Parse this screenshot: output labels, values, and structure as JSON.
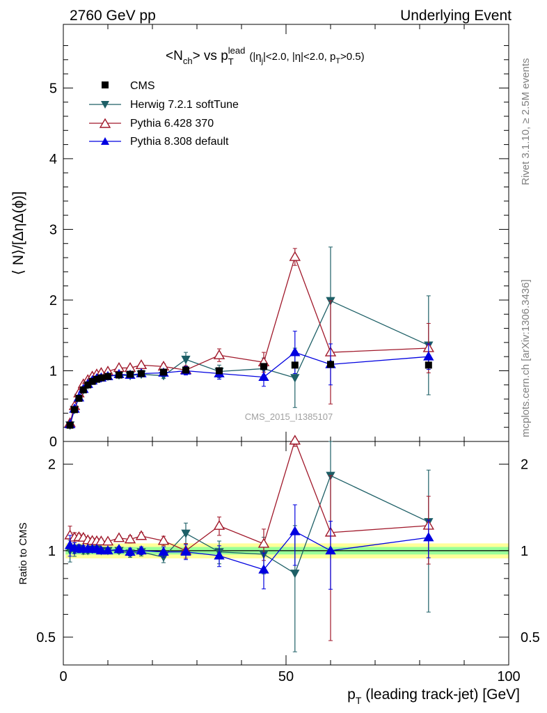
{
  "header": {
    "left": "2760 GeV pp",
    "right": "Underlying Event"
  },
  "side_labels": {
    "rivet": "Rivet 3.1.10, ≥ 2.5M events",
    "mcplots": "mcplots.cern.ch [arXiv:1306.3436]"
  },
  "chart_data": {
    "type": "line",
    "title": {
      "main": "<N",
      "main_sub": "ch",
      "mid": "> vs p",
      "p_sub": "T",
      "p_sup": "lead",
      "cuts": "(|η",
      "cuts_sub": "j",
      "cuts2": "|<2.0, |η|<2.0, p",
      "cuts_sub2": "T",
      "cuts3": ">0.5)"
    },
    "ylabel": "⟨ N⟩/[ΔηΔ(ϕ)]",
    "ratio_ylabel": "Ratio to CMS",
    "xlabel_main": "p",
    "xlabel_sub": "T",
    "xlabel_rest": " (leading track-jet) [GeV]",
    "watermark": "CMS_2015_I1385107",
    "xlim": [
      0,
      100
    ],
    "ylim": [
      0,
      5.9
    ],
    "ratio_ylim": [
      0.4,
      2.4
    ],
    "x_ticks": [
      "0",
      "50",
      "100"
    ],
    "x_tick_values": [
      0,
      50,
      100
    ],
    "y_ticks": [
      "0",
      "1",
      "2",
      "3",
      "4",
      "5"
    ],
    "y_tick_values": [
      0,
      1,
      2,
      3,
      4,
      5
    ],
    "ratio_ticks": [
      "0.5",
      "1",
      "2"
    ],
    "ratio_tick_values": [
      0.5,
      1,
      2
    ],
    "x": [
      1.5,
      2.5,
      3.5,
      4.5,
      5.5,
      6.5,
      7.5,
      8.5,
      10,
      12.5,
      15,
      17.5,
      22.5,
      27.5,
      35,
      45,
      52,
      60,
      82
    ],
    "cms": {
      "name": "CMS",
      "color": "#000000",
      "values": [
        0.23,
        0.45,
        0.61,
        0.73,
        0.8,
        0.85,
        0.88,
        0.9,
        0.92,
        0.94,
        0.95,
        0.96,
        0.98,
        1.01,
        1.0,
        1.06,
        1.08,
        1.09,
        1.08
      ],
      "band_inner": [
        0.97,
        1.03
      ],
      "band_outer": [
        0.94,
        1.06
      ]
    },
    "series": [
      {
        "name": "Herwig 7.2.1 softTune",
        "color": "#1d5f66",
        "marker": "triangle-down",
        "values": [
          0.23,
          0.45,
          0.62,
          0.73,
          0.8,
          0.86,
          0.89,
          0.9,
          0.92,
          0.94,
          0.93,
          0.95,
          0.93,
          1.16,
          0.99,
          1.03,
          0.9,
          1.99,
          1.36
        ],
        "errors": [
          0.02,
          0.02,
          0.02,
          0.02,
          0.02,
          0.02,
          0.02,
          0.02,
          0.02,
          0.02,
          0.03,
          0.03,
          0.04,
          0.1,
          0.09,
          0.15,
          0.42,
          0.76,
          0.7
        ]
      },
      {
        "name": "Pythia 6.428 370",
        "color": "#a0182a",
        "marker": "triangle-up-open",
        "values": [
          0.26,
          0.5,
          0.68,
          0.81,
          0.87,
          0.92,
          0.95,
          0.97,
          0.99,
          1.04,
          1.04,
          1.08,
          1.06,
          1.01,
          1.22,
          1.12,
          2.61,
          1.26,
          1.32
        ],
        "errors": [
          0.02,
          0.02,
          0.02,
          0.02,
          0.02,
          0.02,
          0.02,
          0.02,
          0.02,
          0.02,
          0.03,
          0.03,
          0.04,
          0.06,
          0.09,
          0.14,
          0.12,
          0.73,
          0.35
        ]
      },
      {
        "name": "Pythia 8.308 default",
        "color": "#0000e0",
        "marker": "triangle-up",
        "values": [
          0.24,
          0.46,
          0.62,
          0.74,
          0.81,
          0.86,
          0.89,
          0.9,
          0.92,
          0.95,
          0.94,
          0.96,
          0.97,
          1.0,
          0.96,
          0.91,
          1.26,
          1.09,
          1.2
        ],
        "errors": [
          0.02,
          0.02,
          0.02,
          0.02,
          0.02,
          0.02,
          0.02,
          0.02,
          0.02,
          0.02,
          0.03,
          0.03,
          0.04,
          0.06,
          0.08,
          0.13,
          0.3,
          0.29,
          0.18
        ]
      }
    ],
    "legend_position": "top-left"
  }
}
